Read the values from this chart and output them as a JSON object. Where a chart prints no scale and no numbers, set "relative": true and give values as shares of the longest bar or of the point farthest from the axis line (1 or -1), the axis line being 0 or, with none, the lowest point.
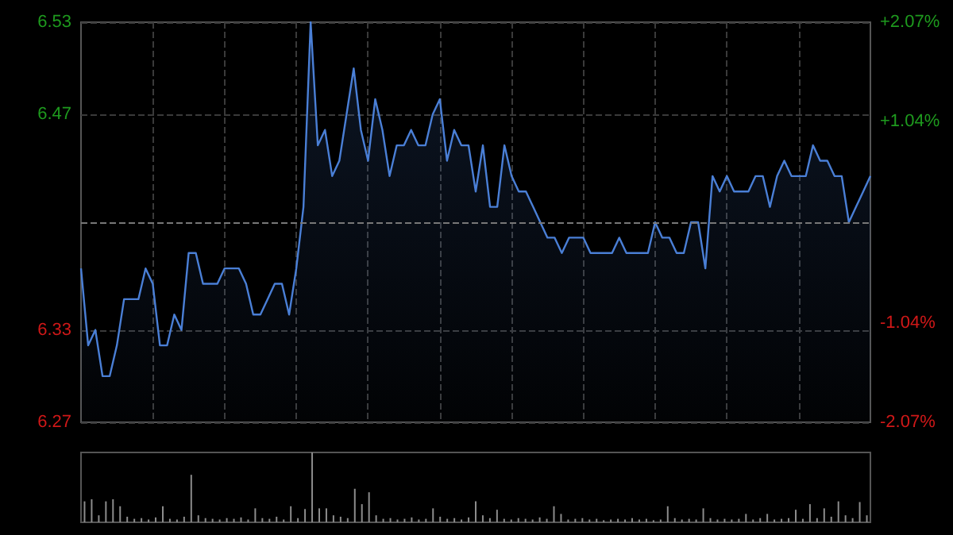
{
  "chart_data": [
    {
      "type": "area",
      "categories": [
        null,
        null,
        null,
        null,
        null,
        null,
        null,
        null,
        null,
        null,
        null,
        null,
        null,
        null,
        null,
        null,
        null,
        null,
        null,
        null,
        null,
        null,
        null,
        null,
        null,
        null,
        null,
        null,
        null,
        null,
        null,
        null,
        null,
        null,
        null,
        null,
        null,
        null,
        null,
        null,
        null,
        null,
        null,
        null,
        null,
        null,
        null,
        null,
        null,
        null,
        null,
        null,
        null,
        null,
        null,
        null,
        null,
        null,
        null,
        null,
        null,
        null,
        null,
        null,
        null,
        null,
        null,
        null,
        null,
        null,
        null,
        null,
        null,
        null,
        null,
        null,
        null,
        null,
        null,
        null,
        null,
        null,
        null,
        null,
        null,
        null,
        null,
        null,
        null,
        null,
        null,
        null,
        null,
        null,
        null,
        null,
        null,
        null,
        null,
        null,
        null,
        null,
        null,
        null,
        null,
        null,
        null,
        null,
        null,
        null,
        null
      ],
      "series": [
        {
          "color": "#4a7fd6",
          "values": [
            6.37,
            6.32,
            6.33,
            6.3,
            6.3,
            6.32,
            6.35,
            6.35,
            6.35,
            6.37,
            6.36,
            6.32,
            6.32,
            6.34,
            6.33,
            6.38,
            6.38,
            6.36,
            6.36,
            6.36,
            6.37,
            6.37,
            6.37,
            6.36,
            6.34,
            6.34,
            6.35,
            6.36,
            6.36,
            6.34,
            6.37,
            6.41,
            6.53,
            6.45,
            6.46,
            6.43,
            6.44,
            6.47,
            6.5,
            6.46,
            6.44,
            6.48,
            6.46,
            6.43,
            6.45,
            6.45,
            6.46,
            6.45,
            6.45,
            6.47,
            6.48,
            6.44,
            6.46,
            6.45,
            6.45,
            6.42,
            6.45,
            6.41,
            6.41,
            6.45,
            6.43,
            6.42,
            6.42,
            6.41,
            6.4,
            6.39,
            6.39,
            6.38,
            6.39,
            6.39,
            6.39,
            6.38,
            6.38,
            6.38,
            6.38,
            6.39,
            6.38,
            6.38,
            6.38,
            6.38,
            6.4,
            6.39,
            6.39,
            6.38,
            6.38,
            6.4,
            6.4,
            6.37,
            6.43,
            6.42,
            6.43,
            6.42,
            6.42,
            6.42,
            6.43,
            6.43,
            6.41,
            6.43,
            6.44,
            6.43,
            6.43,
            6.43,
            6.45,
            6.44,
            6.44,
            6.43,
            6.43,
            6.4,
            6.41,
            6.42,
            6.43
          ]
        }
      ],
      "ylim": [
        6.27,
        6.53
      ],
      "yticks": [
        6.27,
        6.33,
        6.47,
        6.53
      ],
      "y2lim": [
        -2.07,
        2.07
      ],
      "y2ticks": [
        {
          "value": -2.07,
          "label": "-2.07%"
        },
        {
          "value": -1.04,
          "label": "-1.04%"
        },
        {
          "value": 1.04,
          "label": "+1.04%"
        },
        {
          "value": 2.07,
          "label": "+2.07%"
        }
      ],
      "ref_lines": [
        {
          "axis": "y",
          "value": 6.4,
          "label": null,
          "color": "#777777",
          "line_style": "dashed"
        }
      ],
      "grid": true,
      "tick_labels": "y"
    },
    {
      "type": "bar",
      "relative": true,
      "categories": [
        null,
        null,
        null,
        null,
        null,
        null,
        null,
        null,
        null,
        null,
        null,
        null,
        null,
        null,
        null,
        null,
        null,
        null,
        null,
        null,
        null,
        null,
        null,
        null,
        null,
        null,
        null,
        null,
        null,
        null,
        null,
        null,
        null,
        null,
        null,
        null,
        null,
        null,
        null,
        null,
        null,
        null,
        null,
        null,
        null,
        null,
        null,
        null,
        null,
        null,
        null,
        null,
        null,
        null,
        null,
        null,
        null,
        null,
        null,
        null,
        null,
        null,
        null,
        null,
        null,
        null,
        null,
        null,
        null,
        null,
        null,
        null,
        null,
        null,
        null,
        null,
        null,
        null,
        null,
        null,
        null,
        null,
        null,
        null,
        null,
        null,
        null,
        null,
        null,
        null,
        null,
        null,
        null,
        null,
        null,
        null,
        null,
        null,
        null,
        null,
        null,
        null,
        null,
        null,
        null,
        null,
        null,
        null,
        null,
        null,
        null
      ],
      "series": [
        {
          "color": "#8c8c8c",
          "values": [
            0.3,
            0.33,
            0.1,
            0.3,
            0.33,
            0.23,
            0.08,
            0.05,
            0.06,
            0.04,
            0.07,
            0.23,
            0.05,
            0.04,
            0.08,
            0.68,
            0.1,
            0.06,
            0.05,
            0.04,
            0.06,
            0.05,
            0.07,
            0.04,
            0.2,
            0.06,
            0.05,
            0.08,
            0.04,
            0.23,
            0.06,
            0.19,
            1,
            0.2,
            0.2,
            0.1,
            0.08,
            0.06,
            0.48,
            0.26,
            0.43,
            0.1,
            0.05,
            0.06,
            0.04,
            0.05,
            0.07,
            0.04,
            0.05,
            0.2,
            0.08,
            0.05,
            0.06,
            0.04,
            0.07,
            0.3,
            0.1,
            0.06,
            0.18,
            0.05,
            0.04,
            0.06,
            0.05,
            0.04,
            0.07,
            0.05,
            0.23,
            0.12,
            0.04,
            0.05,
            0.06,
            0.04,
            0.05,
            0.03,
            0.04,
            0.05,
            0.04,
            0.06,
            0.04,
            0.05,
            0.03,
            0.04,
            0.23,
            0.06,
            0.04,
            0.05,
            0.04,
            0.2,
            0.06,
            0.04,
            0.05,
            0.04,
            0.05,
            0.12,
            0.04,
            0.06,
            0.12,
            0.04,
            0.05,
            0.06,
            0.18,
            0.05,
            0.26,
            0.06,
            0.2,
            0.08,
            0.3,
            0.1,
            0.06,
            0.29,
            0.1
          ]
        }
      ],
      "tick_labels": false
    }
  ]
}
